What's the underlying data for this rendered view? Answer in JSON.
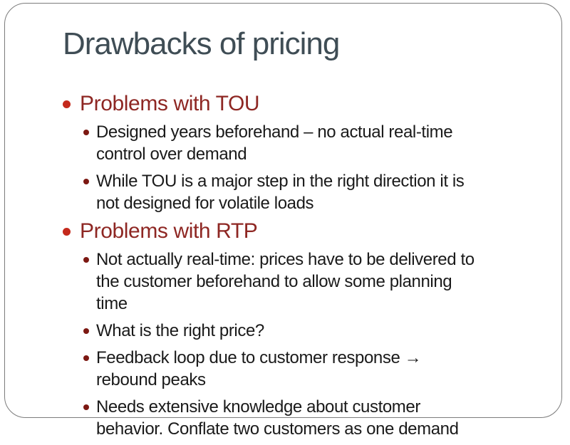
{
  "slide": {
    "title": "Drawbacks of pricing",
    "bullets": [
      {
        "level": 1,
        "text": "Problems with TOU"
      },
      {
        "level": 2,
        "text": "Designed years beforehand – no actual real-time\ncontrol over demand"
      },
      {
        "level": 2,
        "text": "While TOU is a major step in the right direction it is\nnot designed for volatile loads"
      },
      {
        "level": 1,
        "text": "Problems with RTP"
      },
      {
        "level": 2,
        "text": "Not actually real-time: prices have to be delivered to\nthe customer beforehand to allow some planning\ntime"
      },
      {
        "level": 2,
        "text": "What is the right price?"
      },
      {
        "level": 2,
        "text": "Feedback loop due to customer response →\nrebound peaks"
      },
      {
        "level": 2,
        "text": "Needs extensive knowledge about customer\nbehavior. Conflate two customers as one demand"
      }
    ],
    "colors": {
      "background": "#FFFFFF",
      "frame_border": "#7C7C7C",
      "title_color": "#3F4D55",
      "level1_text": "#8E2723",
      "level1_dot": "#C4291C",
      "level2_text": "#1A1A1A",
      "level2_dot": "#7C1812"
    }
  }
}
